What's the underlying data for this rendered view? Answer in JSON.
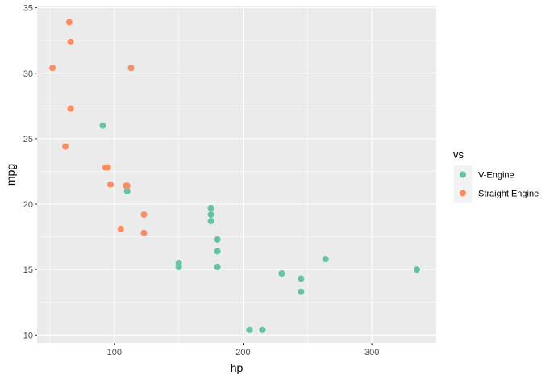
{
  "chart_data": {
    "type": "scatter",
    "title": "",
    "xlabel": "hp",
    "ylabel": "mpg",
    "xlim": [
      40,
      350
    ],
    "ylim": [
      9.4,
      35.1
    ],
    "xticks": [
      100,
      200,
      300
    ],
    "yticks": [
      10,
      15,
      20,
      25,
      30,
      35
    ],
    "grid": true,
    "legend": {
      "title": "vs",
      "placement": "right"
    },
    "series": [
      {
        "name": "V-Engine",
        "color": "#66c2a5",
        "points": [
          {
            "x": 110,
            "y": 21.0
          },
          {
            "x": 110,
            "y": 21.0
          },
          {
            "x": 175,
            "y": 18.7
          },
          {
            "x": 245,
            "y": 14.3
          },
          {
            "x": 180,
            "y": 16.4
          },
          {
            "x": 180,
            "y": 17.3
          },
          {
            "x": 180,
            "y": 15.2
          },
          {
            "x": 205,
            "y": 10.4
          },
          {
            "x": 215,
            "y": 10.4
          },
          {
            "x": 230,
            "y": 14.7
          },
          {
            "x": 150,
            "y": 15.5
          },
          {
            "x": 150,
            "y": 15.2
          },
          {
            "x": 245,
            "y": 13.3
          },
          {
            "x": 175,
            "y": 19.2
          },
          {
            "x": 91,
            "y": 26.0
          },
          {
            "x": 264,
            "y": 15.8
          },
          {
            "x": 175,
            "y": 19.7
          },
          {
            "x": 335,
            "y": 15.0
          }
        ]
      },
      {
        "name": "Straight Engine",
        "color": "#fc8d62",
        "points": [
          {
            "x": 93,
            "y": 22.8
          },
          {
            "x": 110,
            "y": 21.4
          },
          {
            "x": 105,
            "y": 18.1
          },
          {
            "x": 62,
            "y": 24.4
          },
          {
            "x": 95,
            "y": 22.8
          },
          {
            "x": 123,
            "y": 19.2
          },
          {
            "x": 123,
            "y": 17.8
          },
          {
            "x": 66,
            "y": 32.4
          },
          {
            "x": 52,
            "y": 30.4
          },
          {
            "x": 65,
            "y": 33.9
          },
          {
            "x": 97,
            "y": 21.5
          },
          {
            "x": 66,
            "y": 27.3
          },
          {
            "x": 113,
            "y": 30.4
          },
          {
            "x": 109,
            "y": 21.4
          }
        ]
      }
    ]
  }
}
